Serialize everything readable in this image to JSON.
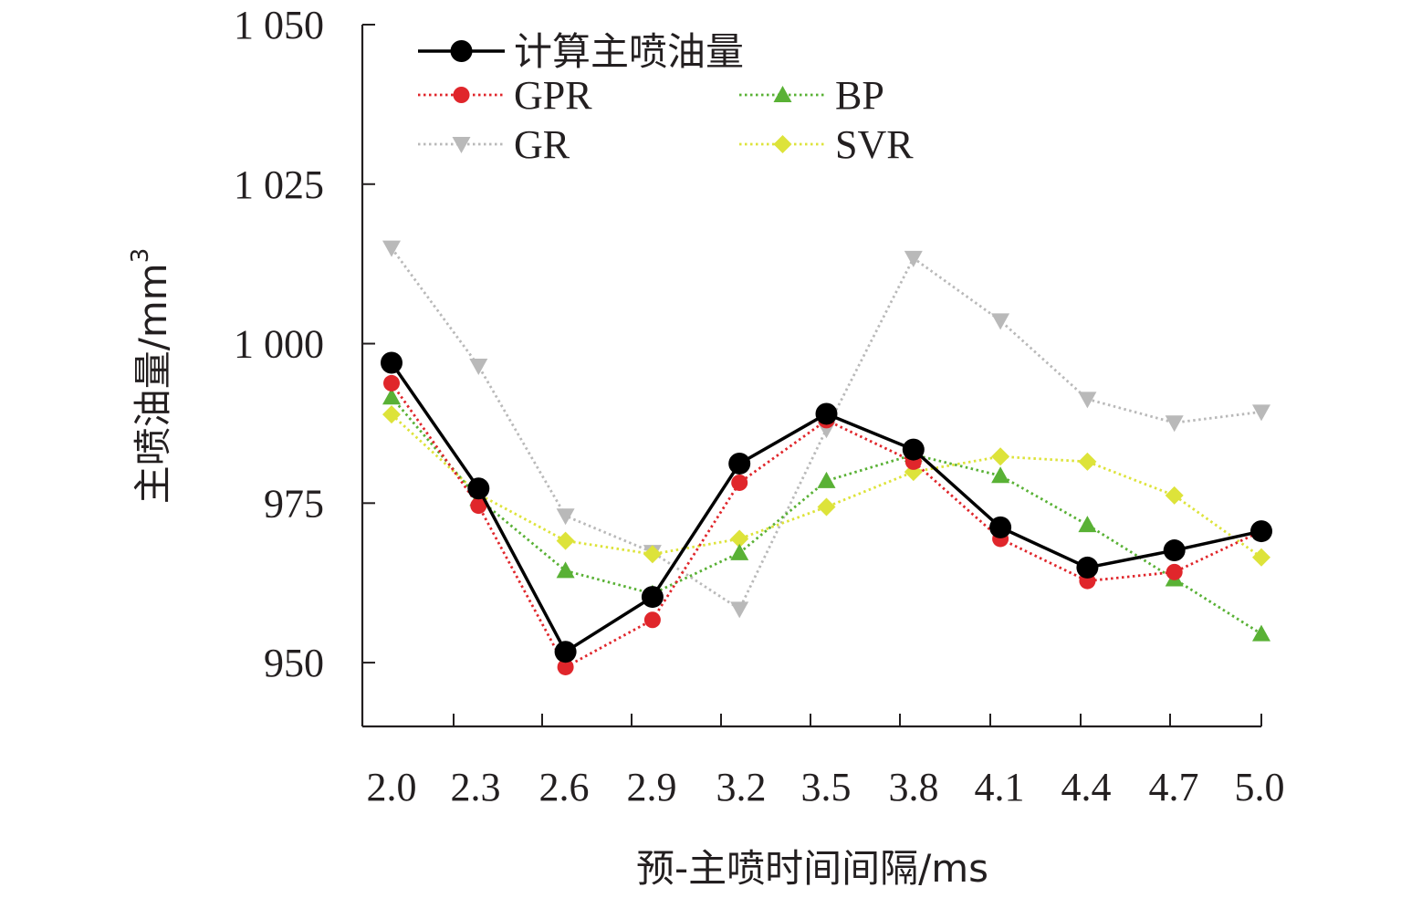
{
  "chart_data": {
    "type": "line",
    "title": "",
    "xlabel": "预-主喷时间间隔/ms",
    "ylabel": "主喷油量/mm",
    "ylabel_superscript": "3",
    "ylim": [
      940,
      1050
    ],
    "yticks": [
      950,
      975,
      1000,
      1025,
      1050
    ],
    "ytick_labels": [
      "950",
      "975",
      "1 000",
      "1 025",
      "1 050"
    ],
    "categories": [
      "2.0",
      "2.3",
      "2.6",
      "2.9",
      "3.2",
      "3.5",
      "3.8",
      "4.1",
      "4.4",
      "4.7",
      "5.0"
    ],
    "legend_position": "top-left",
    "series": [
      {
        "name": "计算主喷油量",
        "color": "#000000",
        "marker": "circle",
        "style": "solid",
        "values": [
          997,
          977.3,
          951.7,
          960.3,
          981.2,
          989,
          983.4,
          971.2,
          964.9,
          967.6,
          970.6
        ]
      },
      {
        "name": "GPR",
        "color": "#e0262b",
        "marker": "circle",
        "style": "dotted",
        "values": [
          993.8,
          974.6,
          949.3,
          956.7,
          978.2,
          988,
          981.5,
          969.4,
          962.8,
          964.2,
          970.6
        ]
      },
      {
        "name": "BP",
        "color": "#59b135",
        "marker": "triangle-up",
        "style": "dotted",
        "values": [
          991.6,
          975.7,
          964.4,
          960.8,
          967.2,
          978.5,
          982.6,
          979.3,
          971.6,
          963.1,
          954.5
        ]
      },
      {
        "name": "GR",
        "color": "#b9b9b9",
        "marker": "triangle-down",
        "style": "dotted",
        "values": [
          1015,
          996.5,
          973,
          967.3,
          958.4,
          986.6,
          1013.4,
          1003.6,
          991.3,
          987.6,
          989.3
        ]
      },
      {
        "name": "SVR",
        "color": "#dde33a",
        "marker": "diamond",
        "style": "dotted",
        "values": [
          988.9,
          976.4,
          969.1,
          967,
          969.4,
          974.4,
          979.9,
          982.3,
          981.5,
          976.2,
          966.5
        ]
      }
    ]
  }
}
